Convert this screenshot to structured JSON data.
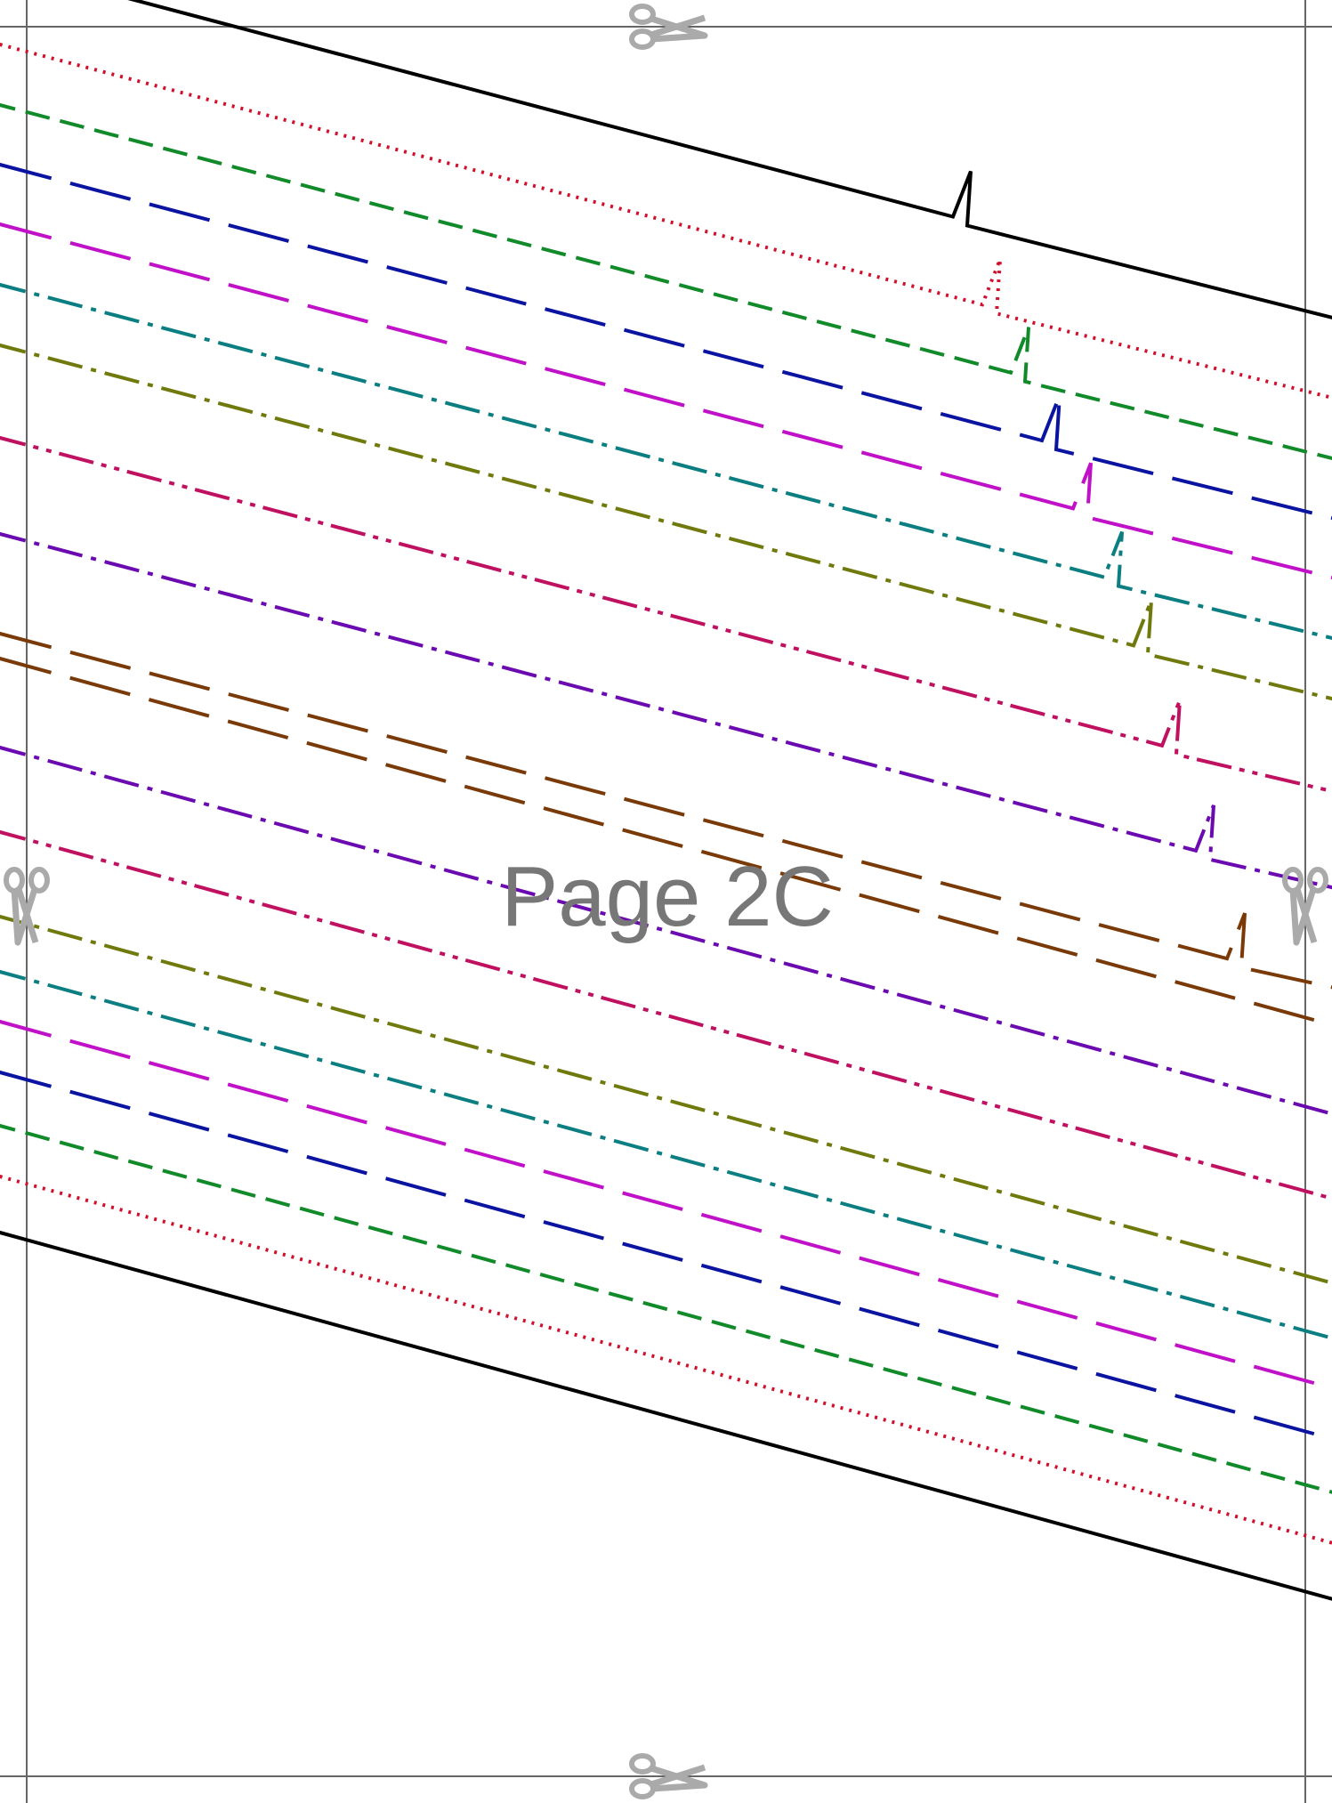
{
  "page": {
    "label": "Page 2C",
    "label_color": "#777777",
    "trim_color": "#666666",
    "scissor_color": "#aaaaaa"
  },
  "scissors": [
    {
      "name": "scissors-top-icon",
      "icon": "scissors-icon"
    },
    {
      "name": "scissors-bottom-icon",
      "icon": "scissors-icon"
    },
    {
      "name": "scissors-left-icon",
      "icon": "scissors-icon"
    },
    {
      "name": "scissors-right-icon",
      "icon": "scissors-icon"
    }
  ],
  "pattern_lines": [
    {
      "name": "size-line-1",
      "color": "#000000",
      "style": "solid",
      "notch": true
    },
    {
      "name": "size-line-2",
      "color": "#d0102c",
      "style": "dotted",
      "notch": true
    },
    {
      "name": "size-line-3",
      "color": "#118a2a",
      "style": "dashed",
      "notch": true
    },
    {
      "name": "size-line-4",
      "color": "#0a14a0",
      "style": "long-dash",
      "notch": true
    },
    {
      "name": "size-line-5",
      "color": "#c010c8",
      "style": "long-dash",
      "notch": true
    },
    {
      "name": "size-line-6",
      "color": "#0a7e80",
      "style": "dash-dot",
      "notch": true
    },
    {
      "name": "size-line-7",
      "color": "#707a0c",
      "style": "dash-dot",
      "notch": true
    },
    {
      "name": "size-line-8",
      "color": "#c01060",
      "style": "dash-dot-dot",
      "notch": true
    },
    {
      "name": "size-line-9",
      "color": "#6a0ab0",
      "style": "dash-dot",
      "notch": true
    },
    {
      "name": "size-line-10",
      "color": "#7a3a08",
      "style": "long-dash",
      "notch": true
    }
  ],
  "lower_lines": [
    {
      "name": "size-line-lower-10",
      "color": "#7a3a08",
      "style": "long-dash"
    },
    {
      "name": "size-line-lower-9",
      "color": "#6a0ab0",
      "style": "dash-dot"
    },
    {
      "name": "size-line-lower-8",
      "color": "#c01060",
      "style": "dash-dot-dot"
    },
    {
      "name": "size-line-lower-7",
      "color": "#707a0c",
      "style": "dash-dot"
    },
    {
      "name": "size-line-lower-6",
      "color": "#0a7e80",
      "style": "dash-dot"
    },
    {
      "name": "size-line-lower-5",
      "color": "#c010c8",
      "style": "long-dash"
    },
    {
      "name": "size-line-lower-4",
      "color": "#0a14a0",
      "style": "long-dash"
    },
    {
      "name": "size-line-lower-3",
      "color": "#118a2a",
      "style": "dashed"
    },
    {
      "name": "size-line-lower-2",
      "color": "#d0102c",
      "style": "dotted"
    },
    {
      "name": "size-line-lower-1",
      "color": "#000000",
      "style": "solid"
    }
  ]
}
